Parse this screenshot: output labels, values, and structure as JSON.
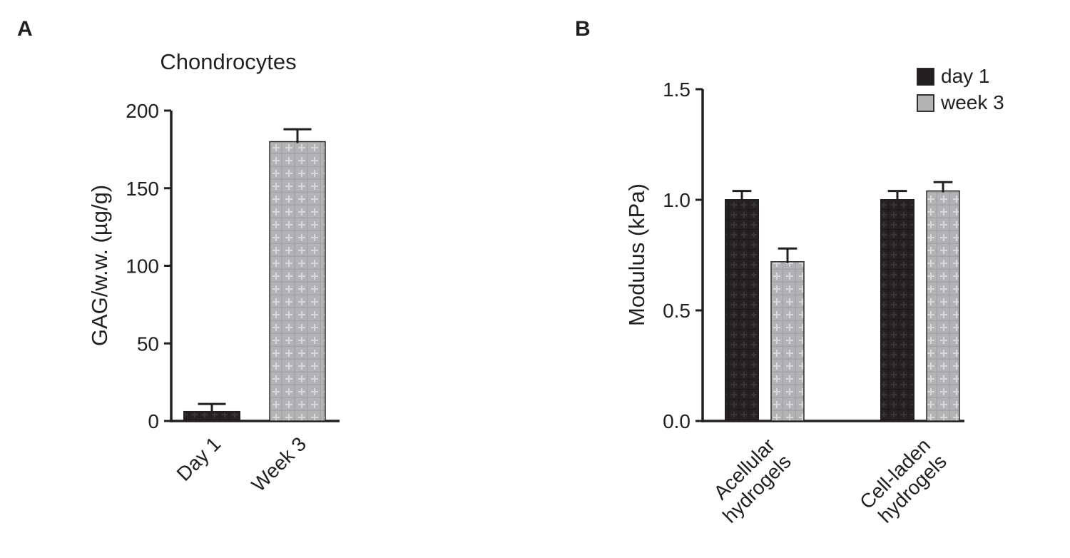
{
  "figure": {
    "panels": [
      {
        "label": "A"
      },
      {
        "label": "B"
      }
    ]
  },
  "chart_data": [
    {
      "type": "bar",
      "panel": "A",
      "title": "Chondrocytes",
      "xlabel": "",
      "ylabel": "GAG/w.w. (µg/g)",
      "categories": [
        "Day 1",
        "Week 3"
      ],
      "values": [
        6,
        180
      ],
      "errors": [
        5,
        8
      ],
      "colors": [
        "#231f20",
        "#b3b2b5"
      ],
      "ylim": [
        0,
        200
      ],
      "yticks": [
        0,
        50,
        100,
        150,
        200
      ],
      "ytick_labels": [
        "0",
        "50",
        "100",
        "150",
        "200"
      ],
      "grid": false
    },
    {
      "type": "bar",
      "panel": "B",
      "title": "",
      "xlabel": "",
      "ylabel": "Modulus (kPa)",
      "categories": [
        [
          "Acellular",
          "hydrogels"
        ],
        [
          "Cell-laden",
          "hydrogels"
        ]
      ],
      "series": [
        {
          "name": "day 1",
          "color": "#231f20",
          "values": [
            1.0,
            1.0
          ],
          "errors": [
            0.04,
            0.04
          ]
        },
        {
          "name": "week 3",
          "color": "#b3b2b5",
          "values": [
            0.72,
            1.04
          ],
          "errors": [
            0.06,
            0.04
          ]
        }
      ],
      "ylim": [
        0,
        1.5
      ],
      "yticks": [
        0,
        0.5,
        1.0,
        1.5
      ],
      "ytick_labels": [
        "0.0",
        "0.5",
        "1.0",
        "1.5"
      ],
      "legend": {
        "position": "top-right",
        "entries": [
          "day 1",
          "week 3"
        ]
      },
      "grid": false
    }
  ]
}
